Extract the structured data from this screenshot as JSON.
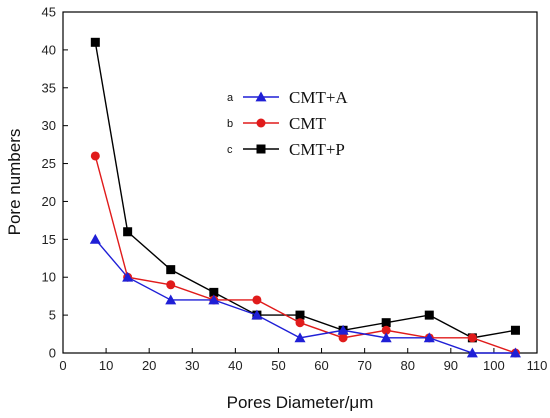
{
  "chart_data": {
    "type": "line",
    "xlabel": "Pores Diameter/μm",
    "ylabel": "Pore numbers",
    "xlim": [
      0,
      110
    ],
    "ylim": [
      0,
      45
    ],
    "xticks": [
      "0",
      "10",
      "20",
      "30",
      "40",
      "50",
      "60",
      "70",
      "80",
      "90",
      "100",
      "110"
    ],
    "yticks": [
      "0",
      "5",
      "10",
      "15",
      "20",
      "25",
      "30",
      "35",
      "40",
      "45"
    ],
    "grid": false,
    "legend_position": "top-center",
    "series": [
      {
        "name": "CMT+A",
        "letter": "a",
        "color": "#1f1fd6",
        "marker": "triangle",
        "x": [
          7.5,
          15,
          25,
          35,
          45,
          55,
          65,
          75,
          85,
          95,
          105
        ],
        "y": [
          15,
          10,
          7,
          7,
          5,
          2,
          3,
          2,
          2,
          0,
          0
        ]
      },
      {
        "name": "CMT",
        "letter": "b",
        "color": "#e01b1b",
        "marker": "circle",
        "x": [
          7.5,
          15,
          25,
          35,
          45,
          55,
          65,
          75,
          85,
          95,
          105
        ],
        "y": [
          26,
          10,
          9,
          7,
          7,
          4,
          2,
          3,
          2,
          2,
          0
        ]
      },
      {
        "name": "CMT+P",
        "letter": "c",
        "color": "#000000",
        "marker": "square",
        "x": [
          7.5,
          15,
          25,
          35,
          45,
          55,
          65,
          75,
          85,
          95,
          105
        ],
        "y": [
          41,
          16,
          11,
          8,
          5,
          5,
          3,
          4,
          5,
          2,
          3
        ]
      }
    ]
  }
}
